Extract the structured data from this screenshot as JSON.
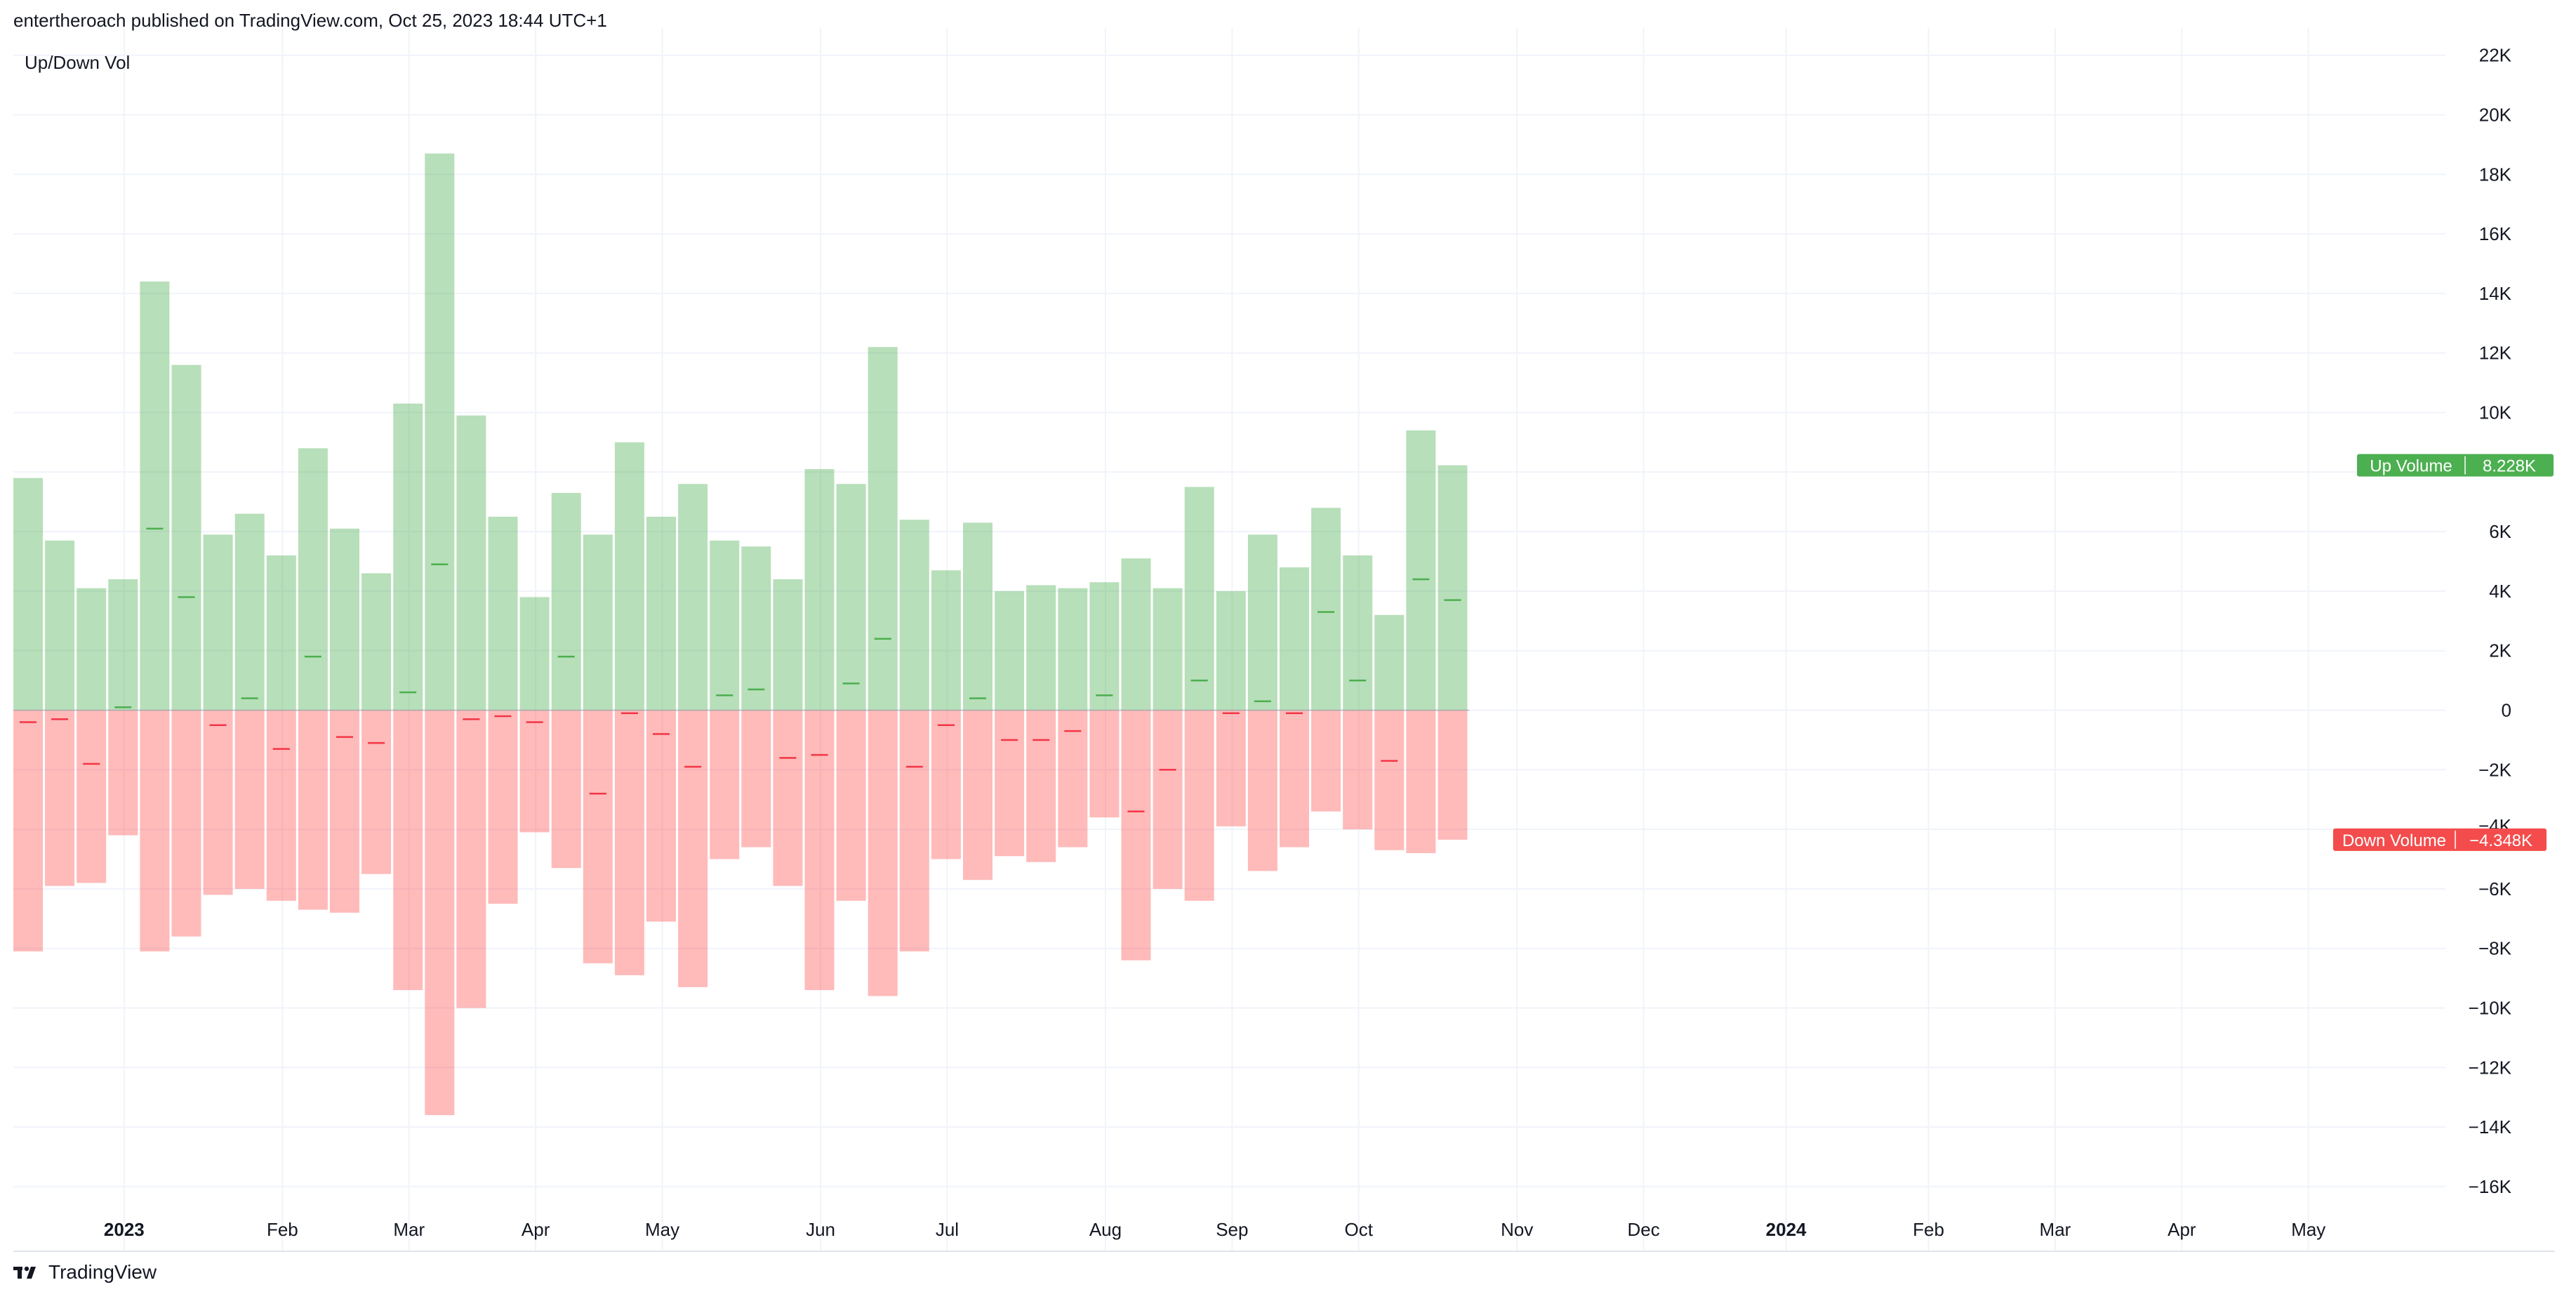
{
  "header": {
    "published": "entertheroach published on TradingView.com, Oct 25, 2023 18:44 UTC+1"
  },
  "footer": {
    "brand": "TradingView",
    "logo_icon": "tradingview-logo-icon"
  },
  "colors": {
    "up": "#4caf50",
    "up_fill": "rgba(76,175,80,0.40)",
    "down": "#f23645",
    "down_fill": "rgba(255,82,82,0.40)",
    "grid": "#f0f3fa",
    "zero": "#9598a1"
  },
  "chart_data": {
    "type": "bar",
    "indicator_title": "Up/Down Vol",
    "ylim": [
      -16500,
      22000
    ],
    "y_ticks": [
      22000,
      20000,
      18000,
      16000,
      14000,
      12000,
      10000,
      6000,
      4000,
      2000,
      0,
      -2000,
      -6000,
      -8000,
      -10000,
      -12000,
      -14000,
      -16000
    ],
    "y_tick_labels": [
      "22K",
      "20K",
      "18K",
      "16K",
      "14K",
      "12K",
      "10K",
      "6K",
      "4K",
      "2K",
      "0",
      "−2K",
      "−6K",
      "−8K",
      "−10K",
      "−12K",
      "−14K",
      "−16K"
    ],
    "partial_tick_label": "−4K",
    "x_labels": [
      {
        "label": "2023",
        "bold": true,
        "week": 3.5
      },
      {
        "label": "Feb",
        "bold": false,
        "week": 8.5
      },
      {
        "label": "Mar",
        "bold": false,
        "week": 12.5
      },
      {
        "label": "Apr",
        "bold": false,
        "week": 16.5
      },
      {
        "label": "May",
        "bold": false,
        "week": 20.5
      },
      {
        "label": "Jun",
        "bold": false,
        "week": 25.5
      },
      {
        "label": "Jul",
        "bold": false,
        "week": 29.5
      },
      {
        "label": "Aug",
        "bold": false,
        "week": 34.5
      },
      {
        "label": "Sep",
        "bold": false,
        "week": 38.5
      },
      {
        "label": "Oct",
        "bold": false,
        "week": 42.5
      },
      {
        "label": "Nov",
        "bold": false,
        "week": 47.5
      },
      {
        "label": "Dec",
        "bold": false,
        "week": 51.5
      },
      {
        "label": "2024",
        "bold": true,
        "week": 56
      },
      {
        "label": "Feb",
        "bold": false,
        "week": 60.5
      },
      {
        "label": "Mar",
        "bold": false,
        "week": 64.5
      },
      {
        "label": "Apr",
        "bold": false,
        "week": 68.5
      },
      {
        "label": "May",
        "bold": false,
        "week": 72.5
      }
    ],
    "series": [
      {
        "name": "Up Volume",
        "last_value_label": "8.228K",
        "values": [
          7800,
          5700,
          4100,
          4400,
          14400,
          11600,
          5900,
          6600,
          5200,
          8800,
          6100,
          4600,
          10300,
          18700,
          9900,
          6500,
          3800,
          7300,
          5900,
          9000,
          6500,
          7600,
          5700,
          5500,
          4400,
          8100,
          7600,
          12200,
          6400,
          4700,
          6300,
          4000,
          4200,
          4100,
          4300,
          5100,
          4100,
          7500,
          4000,
          5900,
          4800,
          6800,
          5200,
          3200,
          9400,
          8228
        ]
      },
      {
        "name": "Down Volume",
        "last_value_label": "−4.348K",
        "values": [
          -8100,
          -5900,
          -5800,
          -4200,
          -8100,
          -7600,
          -6200,
          -6000,
          -6400,
          -6700,
          -6800,
          -5500,
          -9400,
          -13600,
          -10000,
          -6500,
          -4100,
          -5300,
          -8500,
          -8900,
          -7100,
          -9300,
          -5000,
          -4600,
          -5900,
          -9400,
          -6400,
          -9600,
          -8100,
          -5000,
          -5700,
          -4900,
          -5100,
          -4600,
          -3600,
          -8400,
          -6000,
          -6400,
          -3900,
          -5400,
          -4600,
          -3400,
          -4000,
          -4700,
          -4800,
          -4348
        ]
      },
      {
        "name": "Net",
        "values": [
          -400,
          -300,
          -1800,
          100,
          6100,
          3800,
          -500,
          400,
          -1300,
          1800,
          -900,
          -1100,
          600,
          4900,
          -300,
          -200,
          -400,
          1800,
          -2800,
          -100,
          -800,
          -1900,
          500,
          700,
          -1600,
          -1500,
          900,
          2400,
          -1900,
          -500,
          400,
          -1000,
          -1000,
          -700,
          500,
          -3400,
          -2000,
          1000,
          -100,
          300,
          -100,
          3300,
          1000,
          -1700,
          4400,
          3700
        ]
      }
    ]
  }
}
